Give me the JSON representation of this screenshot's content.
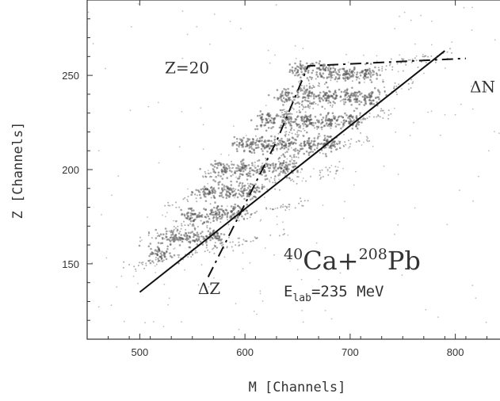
{
  "chart_data": {
    "type": "scatter",
    "title": "",
    "xlabel": "M [Channels]",
    "ylabel": "Z [Channels]",
    "xlim": [
      450,
      850
    ],
    "ylim": [
      110,
      290
    ],
    "xticks": [
      500,
      600,
      700,
      800
    ],
    "yticks": [
      150,
      200,
      250
    ],
    "grid": false,
    "series": [
      {
        "z_band_centers": [
          {
            "x_min": 480,
            "x_max": 640,
            "y_intercept_at_500": 150
          },
          {
            "x_min": 500,
            "x_max": 660,
            "y_intercept_at_500": 164
          },
          {
            "x_min": 520,
            "x_max": 690,
            "y_intercept_at_500": 178
          },
          {
            "x_min": 560,
            "x_max": 720,
            "y_intercept_at_500": 190
          },
          {
            "x_min": 590,
            "x_max": 740,
            "y_intercept_at_500": 202
          },
          {
            "x_min": 620,
            "x_max": 760,
            "y_intercept_at_500": 214
          },
          {
            "x_min": 650,
            "x_max": 800,
            "y_intercept_at_500": 226
          }
        ],
        "blob_centers": [
          {
            "x": 655,
            "y": 253
          },
          {
            "x": 675,
            "y": 252
          },
          {
            "x": 695,
            "y": 251
          },
          {
            "x": 715,
            "y": 251
          },
          {
            "x": 640,
            "y": 239
          },
          {
            "x": 660,
            "y": 239
          },
          {
            "x": 680,
            "y": 239
          },
          {
            "x": 700,
            "y": 238
          },
          {
            "x": 720,
            "y": 238
          },
          {
            "x": 620,
            "y": 226
          },
          {
            "x": 640,
            "y": 226
          },
          {
            "x": 660,
            "y": 226
          },
          {
            "x": 680,
            "y": 226
          },
          {
            "x": 700,
            "y": 226
          },
          {
            "x": 600,
            "y": 213
          },
          {
            "x": 620,
            "y": 213
          },
          {
            "x": 640,
            "y": 213
          },
          {
            "x": 660,
            "y": 213
          },
          {
            "x": 680,
            "y": 214
          },
          {
            "x": 580,
            "y": 200
          },
          {
            "x": 600,
            "y": 200
          },
          {
            "x": 620,
            "y": 200
          },
          {
            "x": 640,
            "y": 201
          },
          {
            "x": 565,
            "y": 188
          },
          {
            "x": 585,
            "y": 188
          },
          {
            "x": 605,
            "y": 189
          },
          {
            "x": 550,
            "y": 176
          },
          {
            "x": 570,
            "y": 176
          },
          {
            "x": 590,
            "y": 177
          },
          {
            "x": 530,
            "y": 164
          },
          {
            "x": 550,
            "y": 164
          },
          {
            "x": 570,
            "y": 165
          },
          {
            "x": 520,
            "y": 155
          }
        ]
      }
    ],
    "lines": [
      {
        "style": "solid",
        "points": [
          [
            500,
            135
          ],
          [
            790,
            263
          ]
        ]
      },
      {
        "style": "dashdot",
        "points": [
          [
            565,
            143
          ],
          [
            630,
            215
          ],
          [
            660,
            255
          ],
          [
            810,
            259
          ]
        ]
      }
    ],
    "annotations": [
      {
        "text": "Z=20",
        "x": 545,
        "y": 251
      },
      {
        "text": "ΔN",
        "x": 826,
        "y": 241
      },
      {
        "text": "ΔZ",
        "x": 566,
        "y": 134
      }
    ],
    "reaction": {
      "a_projectile": "40",
      "projectile": "Ca",
      "plus": "+",
      "a_target": "208",
      "target": "Pb",
      "energy_label": "E",
      "energy_sub": "lab",
      "energy_value": "=235 MeV"
    }
  }
}
